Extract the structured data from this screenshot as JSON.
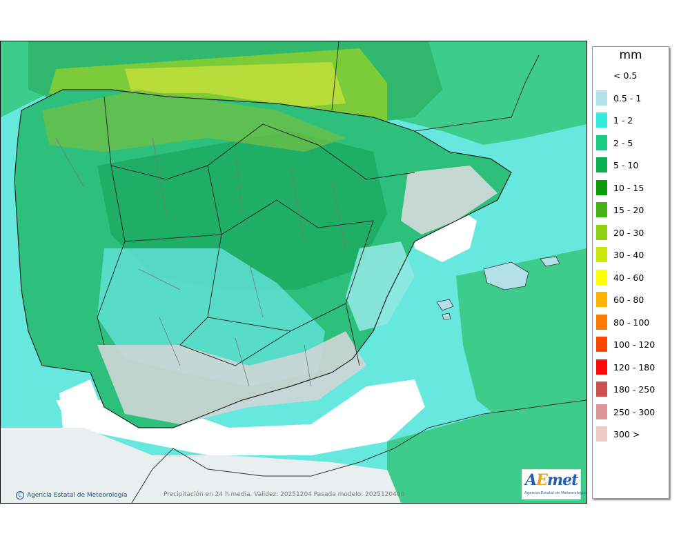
{
  "legend": {
    "unit": "mm",
    "classes": [
      {
        "label": "< 0.5",
        "color": "#ffffff"
      },
      {
        "label": "0.5 - 1",
        "color": "#b4e1e7"
      },
      {
        "label": "1 - 2",
        "color": "#33ebdf"
      },
      {
        "label": "2 - 5",
        "color": "#19cc82"
      },
      {
        "label": "5 - 10",
        "color": "#0ab04d"
      },
      {
        "label": "10 - 15",
        "color": "#0a9a0a"
      },
      {
        "label": "15 - 20",
        "color": "#45b515"
      },
      {
        "label": "20 - 30",
        "color": "#8fd010"
      },
      {
        "label": "30 - 40",
        "color": "#c8e80a"
      },
      {
        "label": "40 - 60",
        "color": "#ffff00"
      },
      {
        "label": "60 - 80",
        "color": "#ffb400"
      },
      {
        "label": "80 - 100",
        "color": "#ff7800"
      },
      {
        "label": "100 - 120",
        "color": "#ff4600"
      },
      {
        "label": "120 - 180",
        "color": "#ff0a0a"
      },
      {
        "label": "180 - 250",
        "color": "#cd5050"
      },
      {
        "label": "250 - 300",
        "color": "#dc9696"
      },
      {
        "label": "300 >",
        "color": "#f0c8c8"
      }
    ]
  },
  "footer": {
    "copyright": "Agencia Estatal de Meteorología",
    "caption": "Precipitación en 24 h media. Validez: 20251204 Pasada modelo: 2025120400"
  },
  "logo": {
    "brand_a": "A",
    "brand_e": "E",
    "brand_rest": "met",
    "subtitle": "Agencia Estatal de Meteorología"
  }
}
